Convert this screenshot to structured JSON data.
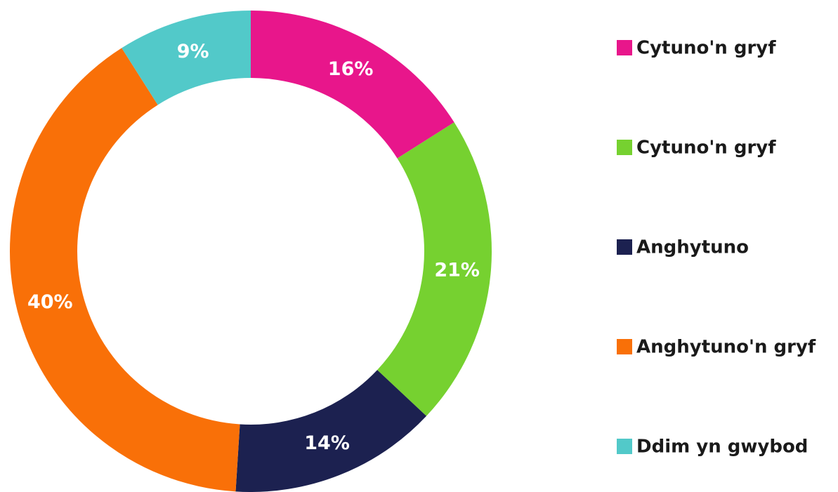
{
  "chart_data": {
    "type": "pie",
    "categories": [
      "Cytuno'n gryf",
      "Cytuno'n gryf",
      "Anghytuno",
      "Anghytuno'n gryf",
      "Ddim yn gwybod"
    ],
    "values": [
      16,
      21,
      14,
      40,
      9
    ],
    "value_labels": [
      "16%",
      "21%",
      "14%",
      "40%",
      "9%"
    ],
    "colors": [
      "#e8168b",
      "#76d130",
      "#1c2150",
      "#f97008",
      "#52c9c9"
    ],
    "legend": "right"
  }
}
